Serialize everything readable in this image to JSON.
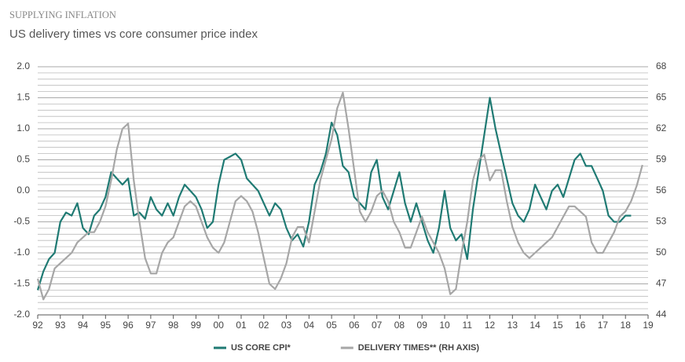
{
  "chart_data": {
    "type": "line",
    "title": "SUPPLYING INFLATION",
    "subtitle": "US delivery times vs core consumer price index",
    "x": [
      1992,
      1992.25,
      1992.5,
      1992.75,
      1993,
      1993.25,
      1993.5,
      1993.75,
      1994,
      1994.25,
      1994.5,
      1994.75,
      1995,
      1995.25,
      1995.5,
      1995.75,
      1996,
      1996.25,
      1996.5,
      1996.75,
      1997,
      1997.25,
      1997.5,
      1997.75,
      1998,
      1998.25,
      1998.5,
      1998.75,
      1999,
      1999.25,
      1999.5,
      1999.75,
      2000,
      2000.25,
      2000.5,
      2000.75,
      2001,
      2001.25,
      2001.5,
      2001.75,
      2002,
      2002.25,
      2002.5,
      2002.75,
      2003,
      2003.25,
      2003.5,
      2003.75,
      2004,
      2004.25,
      2004.5,
      2004.75,
      2005,
      2005.25,
      2005.5,
      2005.75,
      2006,
      2006.25,
      2006.5,
      2006.75,
      2007,
      2007.25,
      2007.5,
      2007.75,
      2008,
      2008.25,
      2008.5,
      2008.75,
      2009,
      2009.25,
      2009.5,
      2009.75,
      2010,
      2010.25,
      2010.5,
      2010.75,
      2011,
      2011.25,
      2011.5,
      2011.75,
      2012,
      2012.25,
      2012.5,
      2012.75,
      2013,
      2013.25,
      2013.5,
      2013.75,
      2014,
      2014.25,
      2014.5,
      2014.75,
      2015,
      2015.25,
      2015.5,
      2015.75,
      2016,
      2016.25,
      2016.5,
      2016.75,
      2017,
      2017.25,
      2017.5,
      2017.75,
      2018,
      2018.25,
      2018.5,
      2018.75
    ],
    "series": [
      {
        "name": "US CORE CPI*",
        "color": "#1f7a73",
        "axis": "y",
        "values": [
          -1.6,
          -1.3,
          -1.1,
          -1.0,
          -0.5,
          -0.35,
          -0.4,
          -0.2,
          -0.6,
          -0.7,
          -0.4,
          -0.3,
          -0.1,
          0.3,
          0.2,
          0.1,
          0.2,
          -0.4,
          -0.35,
          -0.45,
          -0.1,
          -0.3,
          -0.4,
          -0.2,
          -0.4,
          -0.1,
          0.1,
          0.0,
          -0.1,
          -0.3,
          -0.6,
          -0.5,
          0.1,
          0.5,
          0.55,
          0.6,
          0.5,
          0.2,
          0.1,
          0.0,
          -0.2,
          -0.4,
          -0.2,
          -0.3,
          -0.6,
          -0.8,
          -0.7,
          -0.9,
          -0.5,
          0.1,
          0.3,
          0.6,
          1.1,
          0.9,
          0.4,
          0.3,
          -0.1,
          -0.2,
          -0.3,
          0.3,
          0.5,
          -0.1,
          -0.3,
          0.0,
          0.3,
          -0.2,
          -0.5,
          -0.2,
          -0.5,
          -0.8,
          -1.0,
          -0.6,
          0.0,
          -0.6,
          -0.8,
          -0.7,
          -1.1,
          -0.3,
          0.3,
          0.9,
          1.5,
          1.0,
          0.6,
          0.2,
          -0.2,
          -0.4,
          -0.5,
          -0.3,
          0.1,
          -0.1,
          -0.3,
          0.0,
          0.1,
          -0.1,
          0.2,
          0.5,
          0.6,
          0.4,
          0.4,
          0.2,
          0.0,
          -0.4,
          -0.5,
          -0.5,
          -0.4,
          -0.4,
          null,
          null
        ]
      },
      {
        "name": "DELIVERY TIMES** (RH AXIS)",
        "color": "#a6a6a6",
        "axis": "y2",
        "values": [
          47.5,
          45.5,
          46.5,
          48.5,
          49,
          49.5,
          50,
          51,
          51.5,
          52,
          52,
          53,
          54.5,
          57,
          60,
          62,
          62.5,
          57,
          53,
          49.5,
          48,
          48,
          50,
          51,
          51.5,
          53,
          54.5,
          55,
          54.5,
          53,
          51.5,
          50.5,
          50,
          51,
          53,
          55,
          55.5,
          55,
          54,
          52,
          49.5,
          47,
          46.5,
          47.5,
          49,
          51.5,
          52.5,
          52.5,
          51,
          54,
          57,
          59,
          61,
          64,
          65.5,
          62,
          58,
          54,
          53,
          54,
          55.5,
          56,
          55,
          53,
          52,
          50.5,
          50.5,
          52,
          53.5,
          52,
          51,
          50,
          48.5,
          46,
          46.5,
          50,
          53,
          57,
          59,
          59.5,
          57,
          58,
          58,
          55,
          52.5,
          51,
          50,
          49.5,
          50,
          50.5,
          51,
          51.5,
          52.5,
          53.5,
          54.5,
          54.5,
          54,
          53.5,
          51,
          50,
          50,
          51,
          52,
          53.5,
          54,
          55,
          56.5,
          58.5
        ]
      }
    ],
    "xlim": [
      1992,
      2019
    ],
    "xticks": [
      {
        "value": 1992,
        "label": "92"
      },
      {
        "value": 1993,
        "label": "93"
      },
      {
        "value": 1994,
        "label": "94"
      },
      {
        "value": 1995,
        "label": "95"
      },
      {
        "value": 1996,
        "label": "96"
      },
      {
        "value": 1997,
        "label": "97"
      },
      {
        "value": 1998,
        "label": "98"
      },
      {
        "value": 1999,
        "label": "99"
      },
      {
        "value": 2000,
        "label": "00"
      },
      {
        "value": 2001,
        "label": "01"
      },
      {
        "value": 2002,
        "label": "02"
      },
      {
        "value": 2003,
        "label": "03"
      },
      {
        "value": 2004,
        "label": "04"
      },
      {
        "value": 2005,
        "label": "05"
      },
      {
        "value": 2006,
        "label": "06"
      },
      {
        "value": 2007,
        "label": "07"
      },
      {
        "value": 2008,
        "label": "08"
      },
      {
        "value": 2009,
        "label": "09"
      },
      {
        "value": 2010,
        "label": "10"
      },
      {
        "value": 2011,
        "label": "11"
      },
      {
        "value": 2012,
        "label": "12"
      },
      {
        "value": 2013,
        "label": "13"
      },
      {
        "value": 2014,
        "label": "14"
      },
      {
        "value": 2015,
        "label": "15"
      },
      {
        "value": 2016,
        "label": "16"
      },
      {
        "value": 2017,
        "label": "17"
      },
      {
        "value": 2018,
        "label": "18"
      },
      {
        "value": 2019,
        "label": "19"
      }
    ],
    "ylim": [
      -2,
      2
    ],
    "yticks": [
      {
        "value": -2,
        "label": "-2.0"
      },
      -1.5,
      {
        "value": -1,
        "label": "-1.0"
      },
      -0.5,
      {
        "value": 0,
        "label": "0.0"
      },
      0.5,
      {
        "value": 1,
        "label": "1.0"
      },
      1.5,
      {
        "value": 2,
        "label": "2.0"
      }
    ],
    "y2lim": [
      44,
      68
    ],
    "y2ticks": [
      44,
      47,
      50,
      53,
      56,
      59,
      62,
      65,
      68
    ],
    "grid": true,
    "legend": "bottom"
  }
}
